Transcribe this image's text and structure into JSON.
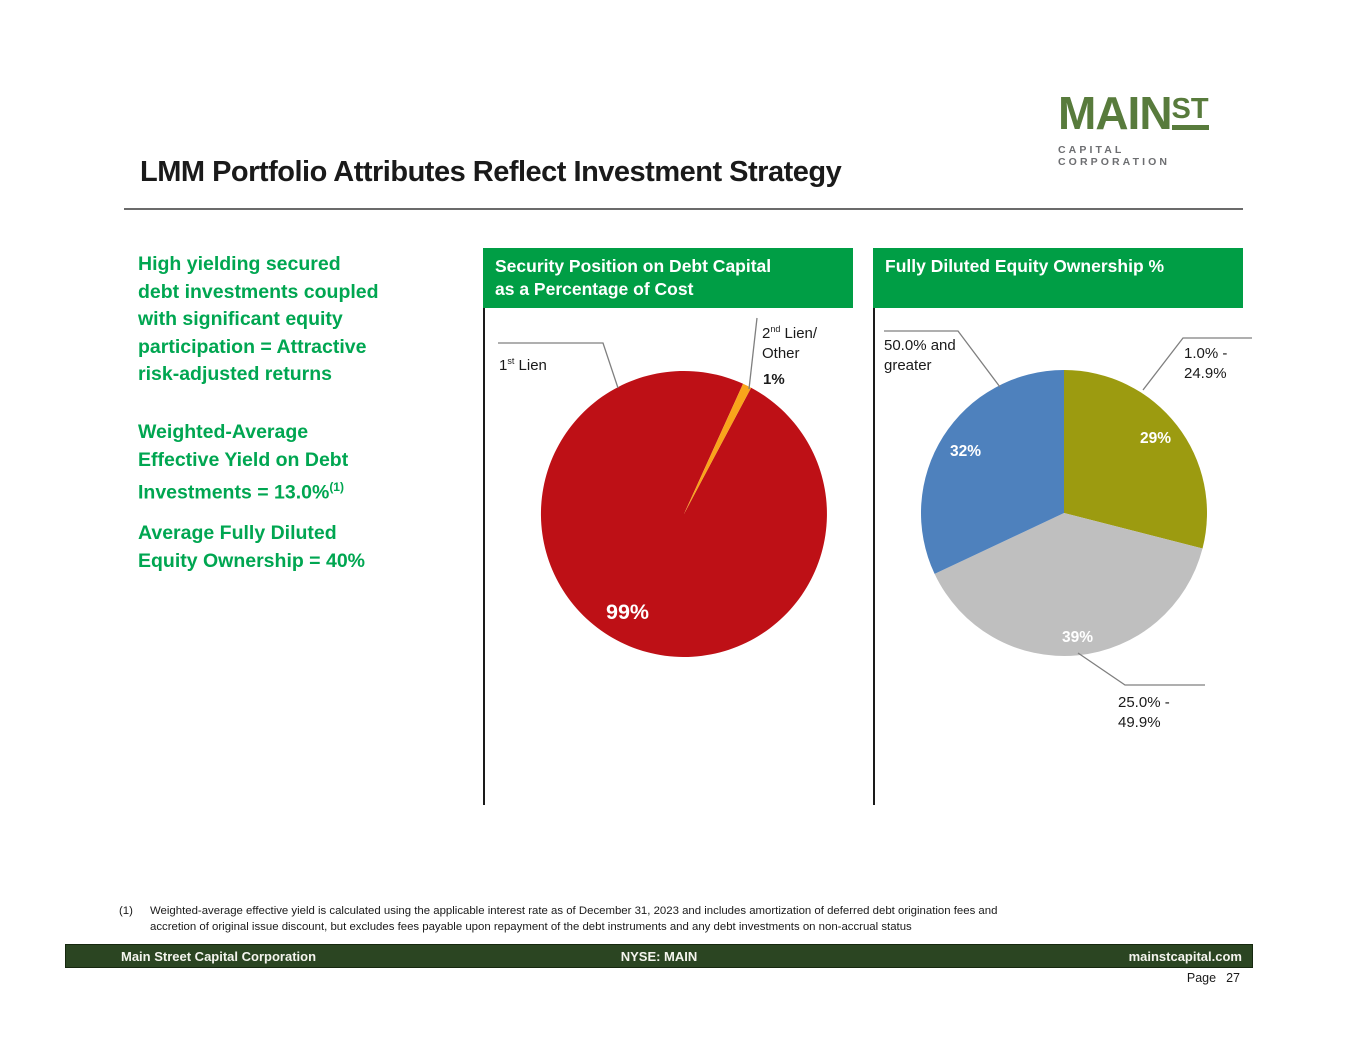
{
  "logo": {
    "main": "MAIN",
    "st": "ST",
    "tagline": "CAPITAL CORPORATION"
  },
  "title": "LMM Portfolio Attributes Reflect Investment Strategy",
  "highlights": {
    "p1": "High yielding secured\ndebt investments coupled\nwith significant equity\nparticipation = Attractive\nrisk-adjusted returns",
    "p2": "Weighted-Average\nEffective Yield on Debt\nInvestments = 13.0%",
    "p2_footnote_ref": "(1)",
    "p3": "Average Fully Diluted\nEquity Ownership = 40%"
  },
  "panels": [
    {
      "header": "Security Position on Debt Capital\nas a Percentage of Cost"
    },
    {
      "header": "Fully Diluted Equity Ownership %"
    }
  ],
  "callouts": {
    "pie1_label1_num": "1",
    "pie1_label1_sup": "st",
    "pie1_label1_rest": " Lien",
    "pie1_label2_num": "2",
    "pie1_label2_sup": "nd",
    "pie1_label2_rest": " Lien/",
    "pie1_label2_line2": "Other",
    "pie2_blue_label": "50.0% and\ngreater",
    "pie2_olive_label": "1.0% -\n24.9%",
    "pie2_gray_label": "25.0% -\n49.9%"
  },
  "chart_data": [
    {
      "type": "pie",
      "title": "Security Position on Debt Capital as a Percentage of Cost",
      "labels": [
        "1st Lien",
        "2nd Lien/Other"
      ],
      "values": [
        99,
        1
      ],
      "data_labels": [
        "99%",
        "1%"
      ],
      "colors": [
        "#BE1016",
        "#F9A51B"
      ],
      "start_angle_deg": 28,
      "legend": "none"
    },
    {
      "type": "pie",
      "title": "Fully Diluted Equity Ownership %",
      "labels": [
        "1.0% - 24.9%",
        "25.0% - 49.9%",
        "50.0% and greater"
      ],
      "values": [
        29,
        39,
        32
      ],
      "data_labels": [
        "29%",
        "39%",
        "32%"
      ],
      "colors": [
        "#9C9B10",
        "#BFBFBF",
        "#4E81BD"
      ],
      "start_angle_deg": 0,
      "legend": "none"
    }
  ],
  "footnote": {
    "marker": "(1)",
    "text": "Weighted-average effective yield is calculated using the applicable interest rate as of December 31, 2023 and includes amortization of deferred debt origination fees and\naccretion of original issue discount, but excludes fees payable upon repayment of the debt instruments and any debt investments on non-accrual status"
  },
  "footer": {
    "left": "Main Street Capital Corporation",
    "center": "NYSE: MAIN",
    "right": "mainstcapital.com",
    "page_label": "Page",
    "page_number": "27"
  }
}
